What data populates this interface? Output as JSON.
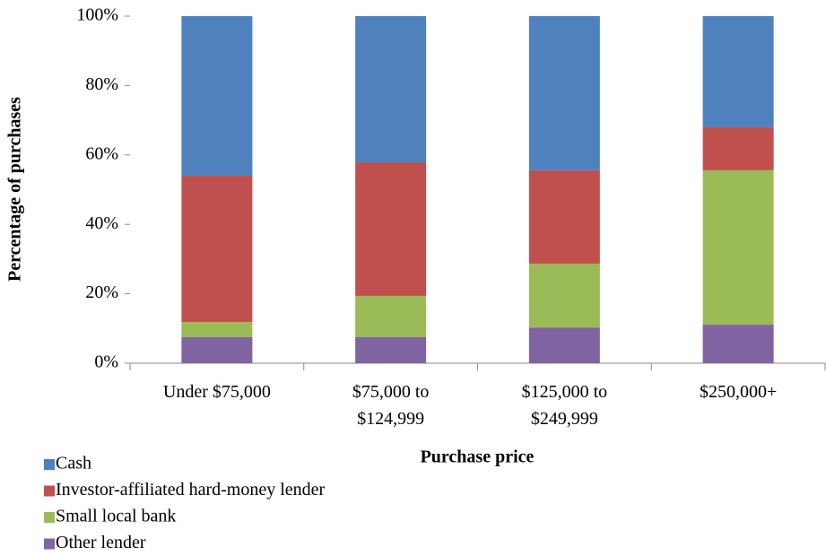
{
  "chart_data": {
    "type": "stacked_bar",
    "xlabel": "Purchase price",
    "ylabel": "Percentage of purchases",
    "categories": [
      "Under $75,000",
      "$75,000 to $124,999",
      "$125,000 to $249,999",
      "$250,000+"
    ],
    "series": [
      {
        "name": "Other lender",
        "color": "#8064a2",
        "values": [
          7.5,
          7.5,
          10.3,
          11.1
        ]
      },
      {
        "name": "Small local bank",
        "color": "#9bbb59",
        "values": [
          4.4,
          11.9,
          18.4,
          44.5
        ]
      },
      {
        "name": "Investor-affiliated hard-money lender",
        "color": "#c0504d",
        "values": [
          42.1,
          38.5,
          26.9,
          12.4
        ]
      },
      {
        "name": "Cash",
        "color": "#4f81bd",
        "values": [
          46.0,
          42.1,
          44.4,
          32.0
        ]
      }
    ],
    "ylim": [
      0,
      100
    ],
    "yticks": [
      {
        "value": 0,
        "label": "0%"
      },
      {
        "value": 20,
        "label": "20%"
      },
      {
        "value": 40,
        "label": "40%"
      },
      {
        "value": 60,
        "label": "60%"
      },
      {
        "value": 80,
        "label": "80%"
      },
      {
        "value": 100,
        "label": "100%"
      }
    ],
    "legend": "bottom-left"
  }
}
